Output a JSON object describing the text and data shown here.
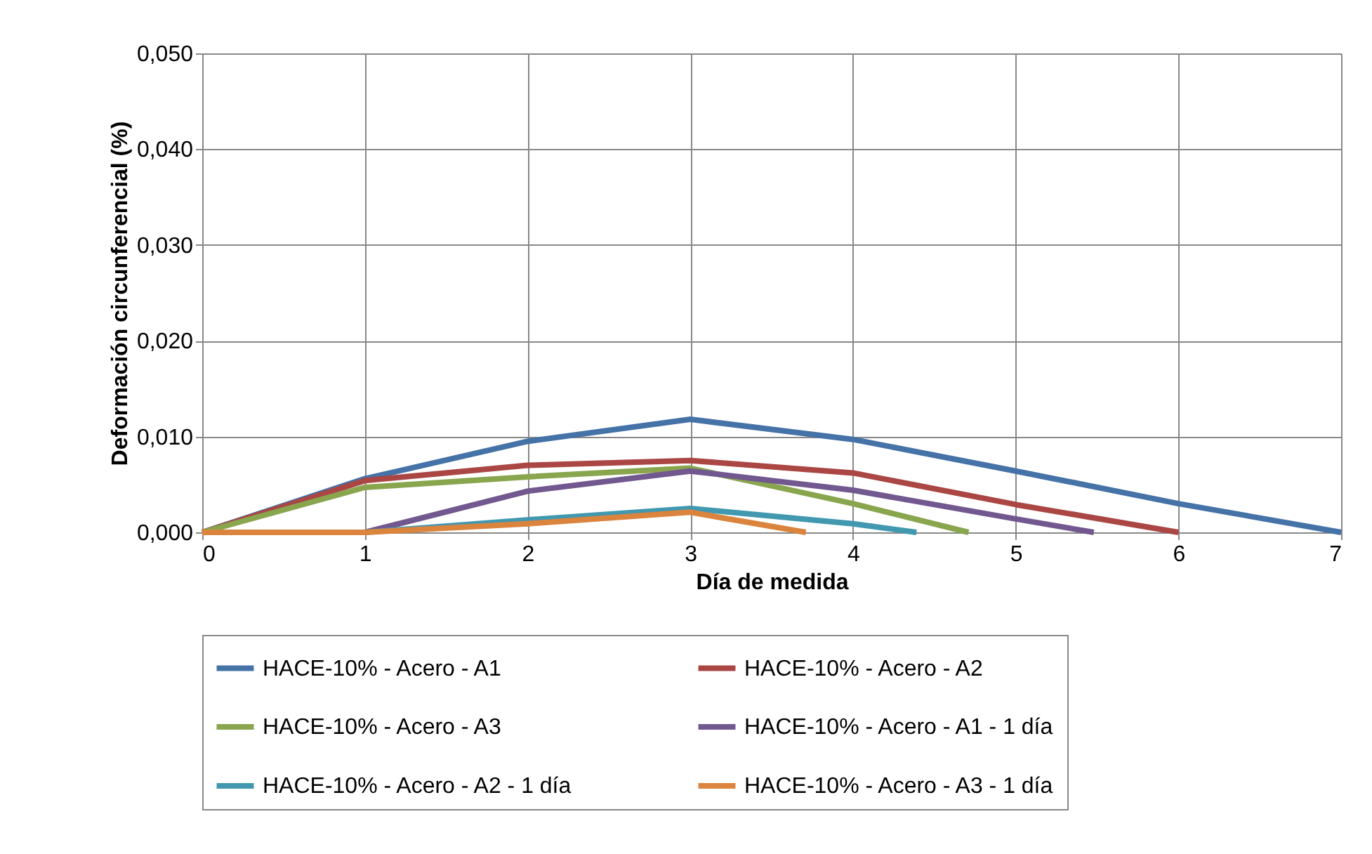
{
  "chart_data": {
    "type": "line",
    "xlabel": "Día de medida",
    "ylabel": "Deformación circunferencial (%)",
    "xlim": [
      0,
      7
    ],
    "xticks": [
      0,
      1,
      2,
      3,
      4,
      5,
      6,
      7
    ],
    "ylim": [
      0,
      0.05
    ],
    "yticks": [
      {
        "value": 0,
        "label": "0,000"
      },
      {
        "value": 0.01,
        "label": "0,010"
      },
      {
        "value": 0.02,
        "label": "0,020"
      },
      {
        "value": 0.03,
        "label": "0,030"
      },
      {
        "value": 0.04,
        "label": "0,040"
      },
      {
        "value": 0.05,
        "label": "0,050"
      }
    ],
    "grid": true,
    "legend": "bottom",
    "marker": "none",
    "line_style": "solid",
    "series": [
      {
        "name": "HACE-10% - Acero - A1",
        "color": "#4572a7",
        "x": [
          0,
          1,
          2,
          3,
          4,
          5,
          6,
          7
        ],
        "values": [
          0,
          0.0056,
          0.0095,
          0.0118,
          0.0097,
          0.0064,
          0.003,
          0
        ]
      },
      {
        "name": "HACE-10% - Acero - A2",
        "color": "#aa4643",
        "x": [
          0,
          1,
          2,
          3,
          4,
          5,
          6
        ],
        "values": [
          0,
          0.0054,
          0.007,
          0.0075,
          0.0062,
          0.0029,
          0
        ]
      },
      {
        "name": "HACE-10% - Acero - A3",
        "color": "#89a54e",
        "x": [
          0,
          1,
          2,
          3,
          4,
          4.71
        ],
        "values": [
          0,
          0.0047,
          0.0058,
          0.0067,
          0.003,
          0
        ]
      },
      {
        "name": "HACE-10% - Acero - A1 - 1 día",
        "color": "#71588f",
        "x": [
          1,
          2,
          3,
          4,
          5,
          5.48
        ],
        "values": [
          0,
          0.0043,
          0.0064,
          0.0044,
          0.0014,
          0
        ]
      },
      {
        "name": "HACE-10% - Acero - A2 - 1 día",
        "color": "#4198af",
        "x": [
          0,
          1,
          2,
          3,
          4,
          4.39
        ],
        "values": [
          0,
          0,
          0.0013,
          0.0025,
          0.0009,
          0
        ]
      },
      {
        "name": "HACE-10% - Acero - A3 - 1 día",
        "color": "#db843d",
        "x": [
          0,
          1,
          2,
          3,
          3.71
        ],
        "values": [
          0,
          0,
          0.0009,
          0.0021,
          0
        ]
      }
    ]
  }
}
